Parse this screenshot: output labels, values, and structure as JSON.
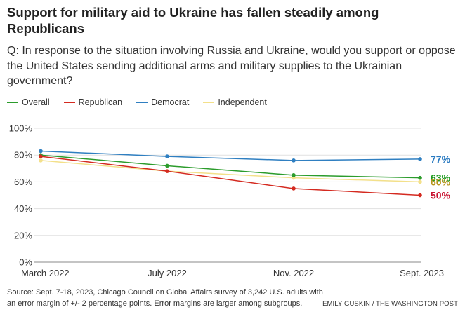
{
  "header": {
    "title": "Support for military aid to Ukraine has fallen steadily among Republicans",
    "question": "Q: In response to the situation involving Russia and Ukraine, would you support or oppose the United States sending additional arms and military supplies to the Ukrainian government?"
  },
  "footer": {
    "source": "Source: Sept. 7-18, 2023, Chicago Council on Global Affairs survey of 3,242 U.S. adults with an error margin of +/- 2 percentage points. Error margins are larger among subgroups.",
    "credit": "EMILY GUSKIN / THE WASHINGTON POST"
  },
  "chart_data": {
    "type": "line",
    "title": "Support for military aid to Ukraine has fallen steadily among Republicans",
    "xlabel": "",
    "ylabel": "",
    "categories": [
      "March 2022",
      "July 2022",
      "Nov. 2022",
      "Sept. 2023"
    ],
    "yticks": [
      "0%",
      "20%",
      "40%",
      "60%",
      "80%",
      "100%"
    ],
    "ylim": [
      0,
      100
    ],
    "grid": true,
    "legend_position": "top-left",
    "series": [
      {
        "name": "Overall",
        "color": "#2c9c2c",
        "label_color": "#1f9a1f",
        "values": [
          80,
          72,
          65,
          63
        ],
        "end_label": "63%"
      },
      {
        "name": "Republican",
        "color": "#d42a20",
        "label_color": "#c8102e",
        "values": [
          79,
          68,
          55,
          50
        ],
        "end_label": "50%"
      },
      {
        "name": "Democrat",
        "color": "#2f7fc1",
        "label_color": "#2879c0",
        "values": [
          83,
          79,
          76,
          77
        ],
        "end_label": "77%"
      },
      {
        "name": "Independent",
        "color": "#f3e08a",
        "label_color": "#b8941a",
        "values": [
          76,
          68,
          63,
          60
        ],
        "end_label": "60%"
      }
    ]
  }
}
